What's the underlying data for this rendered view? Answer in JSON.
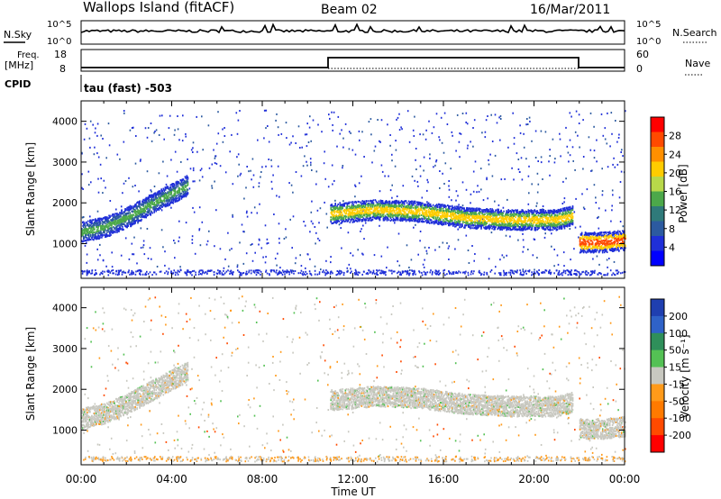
{
  "header": {
    "title": "Wallops Island (fitACF)",
    "beam": "Beam 02",
    "date": "16/Mar/2011"
  },
  "top_panels": {
    "nsky_label": "N.Sky",
    "nsky_ticks": [
      "10^5",
      "10^0"
    ],
    "nsearch_label": "N.Search",
    "nsearch_ticks": [
      "10^5",
      "10^0"
    ],
    "freq_label_1": "Freq.",
    "freq_label_2": "[MHz]",
    "freq_ticks": [
      "18",
      "8"
    ],
    "nave_label": "Nave",
    "nave_ticks": [
      "60",
      "0"
    ],
    "cpid_label": "CPID",
    "cpid_text": "tau (fast) -503"
  },
  "chart_data": [
    {
      "type": "heatmap",
      "name": "power",
      "ylabel": "Slant Range [km]",
      "yticks": [
        "4000",
        "3000",
        "2000",
        "1000"
      ],
      "ylim": [
        150,
        4500
      ],
      "xlim": [
        0,
        24
      ],
      "colorbar": {
        "label": "Power [dB]",
        "ticks": [
          "28",
          "24",
          "20",
          "16",
          "12",
          "8",
          "4"
        ],
        "colors": [
          "#ff0000",
          "#ff4a00",
          "#ff8f00",
          "#ffcc00",
          "#b8d84a",
          "#4ca84a",
          "#2f7a7a",
          "#2c5aa0",
          "#1f2fd8",
          "#0000ff"
        ]
      },
      "bands": [
        {
          "x": [
            0,
            1,
            2,
            3,
            4,
            4.7
          ],
          "y": [
            1300,
            1420,
            1650,
            1950,
            2250,
            2450
          ],
          "level": 16
        },
        {
          "x": [
            11,
            13,
            15,
            17,
            19,
            21,
            21.7
          ],
          "y": [
            1750,
            1850,
            1800,
            1650,
            1600,
            1600,
            1700
          ],
          "level": 22
        },
        {
          "x": [
            22,
            23,
            24
          ],
          "y": [
            1050,
            1050,
            1100
          ],
          "level": 28
        }
      ]
    },
    {
      "type": "heatmap",
      "name": "velocity",
      "ylabel": "Slant Range [km]",
      "yticks": [
        "4000",
        "3000",
        "2000",
        "1000"
      ],
      "ylim": [
        150,
        4500
      ],
      "xlabel": "Time UT",
      "xticks": [
        "00:00",
        "04:00",
        "08:00",
        "12:00",
        "16:00",
        "20:00",
        "00:00"
      ],
      "xlim": [
        0,
        24
      ],
      "colorbar": {
        "label": "Velocity [m s⁻¹]",
        "ticks": [
          "200",
          "100",
          "50",
          "15",
          "-15",
          "-50",
          "-100",
          "-200"
        ],
        "colors": [
          "#1f3fb0",
          "#2f62c8",
          "#2f8f5a",
          "#54c154",
          "#c8c8c0",
          "#ff9a1a",
          "#ff7a00",
          "#ff4a00",
          "#ff0000"
        ]
      }
    }
  ]
}
